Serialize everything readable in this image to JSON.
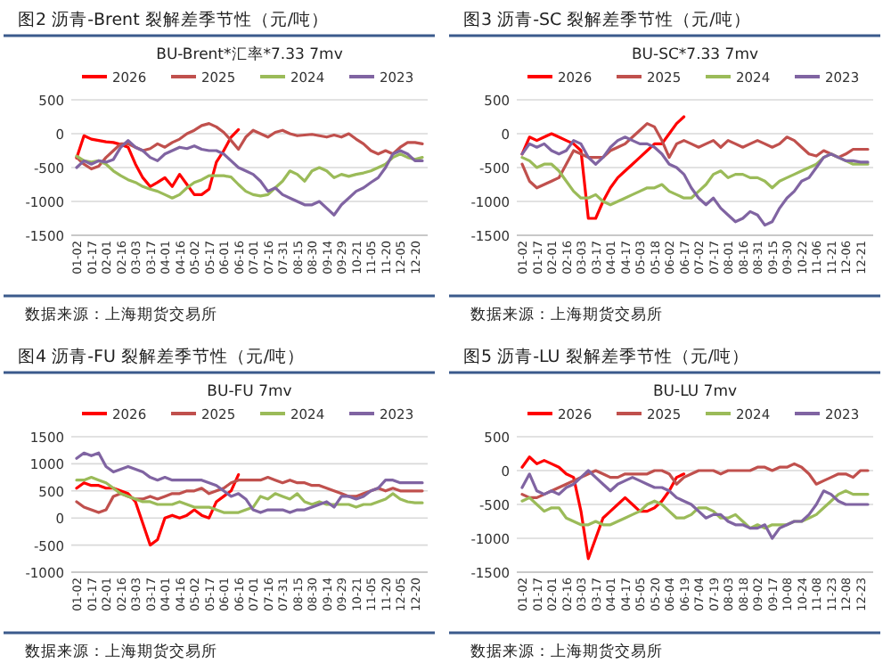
{
  "chart_data": [
    {
      "type": "line",
      "title": "图2    沥青-Brent 裂解差季节性（元/吨）",
      "subtitle": "BU-Brent*汇率*7.33 7mv",
      "categories": [
        "01-02",
        null,
        "01-17",
        null,
        "02-01",
        null,
        "02-16",
        null,
        "03-03",
        null,
        "03-17",
        null,
        "04-01",
        null,
        "04-16",
        null,
        "05-02",
        null,
        "05-17",
        null,
        "06-01",
        null,
        "06-16",
        null,
        "07-01",
        null,
        "07-16",
        null,
        "07-31",
        null,
        "08-15",
        null,
        "08-30",
        null,
        "09-14",
        null,
        "09-29",
        null,
        "10-21",
        null,
        "11-05",
        null,
        "11-20",
        null,
        "12-05",
        null,
        "12-20",
        null
      ],
      "ylim": [
        -1500,
        500
      ],
      "yticks": [
        -1500,
        -1000,
        -500,
        0,
        500
      ],
      "grid": "y",
      "legend": "top",
      "annotations": [
        "数据来源：上海期货交易所"
      ],
      "series": [
        {
          "name": "2026",
          "color": "#ff0000",
          "values": [
            -360,
            -30,
            -80,
            -100,
            -120,
            -130,
            -160,
            -200,
            -450,
            -650,
            -780,
            -720,
            -650,
            -780,
            -600,
            -750,
            -900,
            -900,
            -820,
            -420,
            -250,
            -50,
            60,
            null,
            null,
            null,
            null,
            null,
            null,
            null,
            null,
            null,
            null,
            null,
            null,
            null,
            null,
            null,
            null,
            null,
            null,
            null,
            null,
            null,
            null,
            null,
            null,
            null
          ]
        },
        {
          "name": "2025",
          "color": "#c0504d",
          "values": [
            -350,
            -450,
            -520,
            -480,
            -350,
            -250,
            -150,
            -150,
            -200,
            -250,
            -220,
            -150,
            -200,
            -130,
            -80,
            0,
            50,
            120,
            150,
            100,
            20,
            -100,
            -230,
            -50,
            50,
            0,
            -50,
            20,
            50,
            0,
            -30,
            -20,
            -10,
            -30,
            -50,
            -20,
            -50,
            0,
            -80,
            -150,
            -250,
            -300,
            -250,
            -300,
            -200,
            -130,
            -130,
            -150
          ]
        },
        {
          "name": "2024",
          "color": "#9bbb59",
          "values": [
            -330,
            -400,
            -420,
            -400,
            -450,
            -550,
            -620,
            -680,
            -720,
            -780,
            -820,
            -850,
            -900,
            -950,
            -900,
            -800,
            -720,
            -680,
            -620,
            -620,
            -620,
            -640,
            -750,
            -850,
            -900,
            -920,
            -900,
            -800,
            -700,
            -550,
            -600,
            -700,
            -550,
            -500,
            -550,
            -650,
            -600,
            -630,
            -600,
            -580,
            -550,
            -500,
            -450,
            -350,
            -300,
            -350,
            -380,
            -350
          ]
        },
        {
          "name": "2023",
          "color": "#8064a2",
          "values": [
            -500,
            -400,
            -450,
            -400,
            -420,
            -380,
            -200,
            -100,
            -200,
            -250,
            -350,
            -400,
            -300,
            -250,
            -200,
            -220,
            -180,
            -230,
            -250,
            -250,
            -300,
            -400,
            -500,
            -550,
            -600,
            -700,
            -850,
            -800,
            -900,
            -950,
            -1000,
            -1050,
            -1050,
            -1000,
            -1100,
            -1200,
            -1050,
            -950,
            -850,
            -800,
            -720,
            -650,
            -500,
            -300,
            -250,
            -300,
            -400,
            -400
          ]
        }
      ]
    },
    {
      "type": "line",
      "title": "图3    沥青-SC 裂解差季节性（元/吨）",
      "subtitle": "BU-SC*7.33 7mv",
      "categories": [
        "01-02",
        null,
        "01-17",
        null,
        "02-01",
        null,
        "02-16",
        null,
        "03-03",
        null,
        "03-17",
        null,
        "04-01",
        null,
        "04-17",
        null,
        "05-03",
        null,
        "05-18",
        null,
        "06-02",
        null,
        "06-17",
        null,
        "07-02",
        null,
        "07-17",
        null,
        "08-01",
        null,
        "08-16",
        null,
        "08-31",
        null,
        "09-15",
        null,
        "09-30",
        null,
        "10-22",
        null,
        "11-06",
        null,
        "11-21",
        null,
        "12-06",
        null,
        "12-21",
        null
      ],
      "ylim": [
        -1500,
        500
      ],
      "yticks": [
        -1500,
        -1000,
        -500,
        0,
        500
      ],
      "grid": "y",
      "legend": "top",
      "annotations": [
        "数据来源：上海期货交易所"
      ],
      "series": [
        {
          "name": "2026",
          "color": "#ff0000",
          "values": [
            -300,
            -50,
            -100,
            -50,
            0,
            -50,
            -100,
            -150,
            -250,
            -1250,
            -1250,
            -1000,
            -800,
            -650,
            -550,
            -450,
            -350,
            -250,
            -150,
            -150,
            0,
            150,
            250,
            null,
            null,
            null,
            null,
            null,
            null,
            null,
            null,
            null,
            null,
            null,
            null,
            null,
            null,
            null,
            null,
            null,
            null,
            null,
            null,
            null,
            null,
            null,
            null,
            null
          ]
        },
        {
          "name": "2025",
          "color": "#c0504d",
          "values": [
            -450,
            -700,
            -800,
            -750,
            -700,
            -650,
            -450,
            -250,
            -300,
            -350,
            -350,
            -350,
            -250,
            -200,
            -150,
            -50,
            50,
            150,
            100,
            -100,
            -350,
            -150,
            -100,
            -150,
            -200,
            -150,
            -100,
            -200,
            -100,
            -150,
            -200,
            -150,
            -100,
            -150,
            -200,
            -150,
            -50,
            -100,
            -200,
            -300,
            -330,
            -250,
            -300,
            -350,
            -300,
            -230,
            -230,
            -230
          ]
        },
        {
          "name": "2024",
          "color": "#9bbb59",
          "values": [
            -350,
            -400,
            -500,
            -450,
            -450,
            -550,
            -700,
            -850,
            -950,
            -950,
            -900,
            -1000,
            -1050,
            -1000,
            -950,
            -900,
            -850,
            -800,
            -800,
            -750,
            -850,
            -900,
            -950,
            -950,
            -850,
            -750,
            -600,
            -550,
            -650,
            -600,
            -600,
            -650,
            -650,
            -700,
            -800,
            -700,
            -650,
            -600,
            -550,
            -500,
            -450,
            -350,
            -300,
            -350,
            -400,
            -450,
            -450,
            -450
          ]
        },
        {
          "name": "2023",
          "color": "#8064a2",
          "values": [
            -300,
            -150,
            -200,
            -150,
            -250,
            -300,
            -250,
            -100,
            -150,
            -350,
            -450,
            -350,
            -200,
            -100,
            -50,
            -100,
            -150,
            -150,
            -200,
            -300,
            -450,
            -500,
            -600,
            -800,
            -950,
            -1050,
            -950,
            -1100,
            -1200,
            -1300,
            -1250,
            -1150,
            -1200,
            -1350,
            -1300,
            -1100,
            -950,
            -850,
            -700,
            -650,
            -500,
            -350,
            -300,
            -350,
            -400,
            -400,
            -420,
            -420
          ]
        }
      ]
    },
    {
      "type": "line",
      "title": "图4    沥青-FU 裂解差季节性（元/吨）",
      "subtitle": "BU-FU 7mv",
      "categories": [
        "01-02",
        null,
        "01-17",
        null,
        "02-01",
        null,
        "02-16",
        null,
        "03-03",
        null,
        "03-17",
        null,
        "04-01",
        null,
        "04-16",
        null,
        "05-02",
        null,
        "05-17",
        null,
        "06-01",
        null,
        "06-16",
        null,
        "07-01",
        null,
        "07-16",
        null,
        "07-31",
        null,
        "08-15",
        null,
        "08-30",
        null,
        "09-14",
        null,
        "09-29",
        null,
        "10-21",
        null,
        "11-05",
        null,
        "11-20",
        null,
        "12-05",
        null,
        "12-20",
        null
      ],
      "ylim": [
        -1000,
        1500
      ],
      "yticks": [
        -1000,
        -500,
        0,
        500,
        1000,
        1500
      ],
      "grid": "y",
      "legend": "top",
      "annotations": [
        "数据来源：上海期货交易所"
      ],
      "series": [
        {
          "name": "2026",
          "color": "#ff0000",
          "values": [
            550,
            650,
            600,
            600,
            550,
            550,
            500,
            450,
            300,
            -100,
            -500,
            -400,
            0,
            50,
            0,
            50,
            150,
            50,
            0,
            300,
            400,
            500,
            800,
            null,
            null,
            null,
            null,
            null,
            null,
            null,
            null,
            null,
            null,
            null,
            null,
            null,
            null,
            null,
            null,
            null,
            null,
            null,
            null,
            null,
            null,
            null,
            null,
            null
          ]
        },
        {
          "name": "2025",
          "color": "#c0504d",
          "values": [
            300,
            200,
            150,
            100,
            150,
            400,
            450,
            400,
            350,
            350,
            400,
            350,
            400,
            450,
            450,
            500,
            500,
            550,
            450,
            500,
            550,
            650,
            700,
            700,
            700,
            700,
            750,
            700,
            650,
            700,
            650,
            650,
            600,
            600,
            550,
            500,
            450,
            400,
            400,
            450,
            500,
            550,
            500,
            550,
            500,
            500,
            500,
            500
          ]
        },
        {
          "name": "2024",
          "color": "#9bbb59",
          "values": [
            700,
            700,
            750,
            700,
            650,
            550,
            450,
            400,
            350,
            300,
            300,
            250,
            250,
            250,
            300,
            250,
            200,
            200,
            200,
            150,
            100,
            100,
            100,
            150,
            200,
            400,
            350,
            450,
            400,
            350,
            450,
            300,
            250,
            300,
            250,
            250,
            250,
            250,
            200,
            250,
            250,
            300,
            350,
            450,
            350,
            300,
            280,
            280
          ]
        },
        {
          "name": "2023",
          "color": "#8064a2",
          "values": [
            1100,
            1200,
            1150,
            1200,
            950,
            850,
            900,
            950,
            900,
            850,
            750,
            700,
            750,
            700,
            700,
            700,
            700,
            700,
            650,
            600,
            500,
            400,
            450,
            350,
            150,
            100,
            150,
            150,
            150,
            100,
            150,
            150,
            200,
            250,
            300,
            200,
            400,
            400,
            350,
            400,
            500,
            550,
            700,
            700,
            650,
            650,
            650,
            650
          ]
        }
      ]
    },
    {
      "type": "line",
      "title": "图5    沥青-LU 裂解差季节性（元/吨）",
      "subtitle": "BU-LU 7mv",
      "categories": [
        "01-02",
        null,
        "01-17",
        null,
        "02-01",
        null,
        "02-16",
        null,
        "03-03",
        null,
        "03-17",
        null,
        "04-01",
        null,
        "04-17",
        null,
        "05-05",
        null,
        "05-20",
        null,
        "06-04",
        null,
        "06-19",
        null,
        "07-04",
        null,
        "07-19",
        null,
        "08-03",
        null,
        "08-18",
        null,
        "09-02",
        null,
        "09-17",
        null,
        "10-08",
        null,
        "10-24",
        null,
        "11-08",
        null,
        "11-23",
        null,
        "12-08",
        null,
        "12-23",
        null
      ],
      "ylim": [
        -1500,
        500
      ],
      "yticks": [
        -1500,
        -1000,
        -500,
        0,
        500
      ],
      "grid": "y",
      "legend": "top",
      "annotations": [
        "数据来源：上海期货交易所"
      ],
      "series": [
        {
          "name": "2026",
          "color": "#ff0000",
          "values": [
            50,
            200,
            100,
            150,
            100,
            50,
            -50,
            -100,
            -600,
            -1300,
            -1000,
            -700,
            -600,
            -500,
            -400,
            -500,
            -600,
            -600,
            -550,
            -450,
            -300,
            -100,
            -50,
            null,
            null,
            null,
            null,
            null,
            null,
            null,
            null,
            null,
            null,
            null,
            null,
            null,
            null,
            null,
            null,
            null,
            null,
            null,
            null,
            null,
            null,
            null,
            null,
            null
          ]
        },
        {
          "name": "2025",
          "color": "#c0504d",
          "values": [
            -350,
            -400,
            -400,
            -350,
            -300,
            -250,
            -200,
            -150,
            -100,
            -50,
            0,
            -50,
            -100,
            -100,
            -50,
            -50,
            -50,
            -50,
            0,
            0,
            -50,
            -200,
            -100,
            -50,
            0,
            0,
            0,
            -50,
            0,
            0,
            0,
            0,
            50,
            50,
            0,
            50,
            50,
            100,
            50,
            -50,
            -200,
            -150,
            -100,
            -50,
            -50,
            -100,
            0,
            0
          ]
        },
        {
          "name": "2024",
          "color": "#9bbb59",
          "values": [
            -450,
            -400,
            -500,
            -600,
            -550,
            -550,
            -700,
            -750,
            -800,
            -800,
            -750,
            -800,
            -800,
            -750,
            -700,
            -650,
            -600,
            -500,
            -450,
            -500,
            -600,
            -700,
            -700,
            -650,
            -550,
            -550,
            -600,
            -700,
            -700,
            -650,
            -750,
            -850,
            -800,
            -850,
            -800,
            -800,
            -800,
            -750,
            -750,
            -700,
            -650,
            -550,
            -450,
            -350,
            -300,
            -350,
            -350,
            -350
          ]
        },
        {
          "name": "2023",
          "color": "#8064a2",
          "values": [
            -250,
            -50,
            -300,
            -350,
            -300,
            -350,
            -250,
            -200,
            -100,
            0,
            -100,
            -200,
            -300,
            -200,
            -150,
            -100,
            -150,
            -200,
            -250,
            -250,
            -300,
            -400,
            -450,
            -500,
            -600,
            -700,
            -650,
            -650,
            -750,
            -800,
            -800,
            -850,
            -850,
            -800,
            -1000,
            -850,
            -800,
            -750,
            -750,
            -650,
            -500,
            -300,
            -350,
            -450,
            -500,
            -500,
            -500,
            -500
          ]
        }
      ]
    }
  ]
}
